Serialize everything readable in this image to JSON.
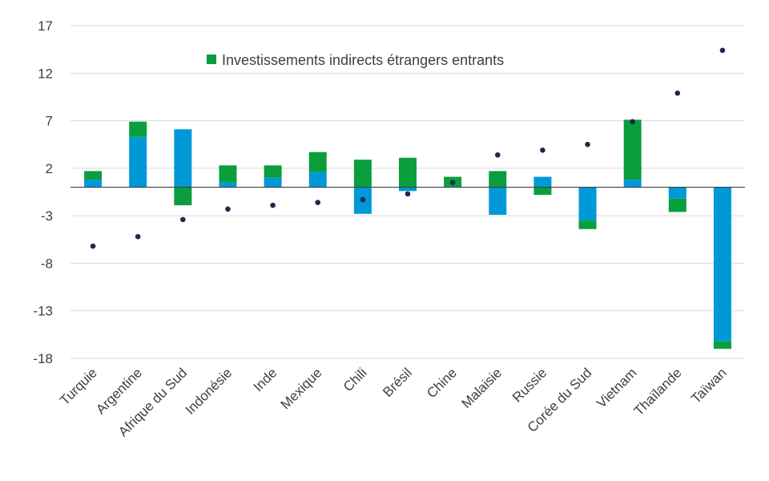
{
  "chart_data": {
    "type": "bar",
    "stacked": true,
    "categories": [
      "Turquie",
      "Argentine",
      "Afrique du Sud",
      "Indonésie",
      "Inde",
      "Mexique",
      "Chili",
      "Brésil",
      "Chine",
      "Malaisie",
      "Russie",
      "Corée du Sud",
      "Vietnam",
      "Thaïlande",
      "Taïwan"
    ],
    "series": [
      {
        "name": "",
        "color": "#0099d8",
        "values": [
          0.8,
          5.3,
          6.1,
          0.5,
          1.0,
          1.6,
          -2.8,
          -0.4,
          0.0,
          -2.9,
          1.1,
          -3.5,
          0.8,
          -1.2,
          -16.2
        ]
      },
      {
        "name": "Investissements indirects étrangers entrants",
        "color": "#0a9e3d",
        "values": [
          0.9,
          1.6,
          -1.9,
          1.8,
          1.3,
          2.1,
          2.9,
          3.1,
          1.1,
          1.7,
          -0.8,
          -0.9,
          6.3,
          -1.4,
          -0.8
        ]
      }
    ],
    "markers": {
      "name": "",
      "color": "#1a2b4c",
      "values": [
        -6.2,
        -5.2,
        -3.4,
        -2.3,
        -1.9,
        -1.6,
        -1.3,
        -0.7,
        0.5,
        3.4,
        3.9,
        4.5,
        6.9,
        9.9,
        14.4
      ]
    },
    "yticks": [
      17,
      12,
      7,
      2,
      -3,
      -8,
      -13,
      -18
    ],
    "ylim": [
      -18,
      17
    ],
    "grid": true,
    "legend": "top-center",
    "title": "",
    "xlabel": "",
    "ylabel": ""
  }
}
